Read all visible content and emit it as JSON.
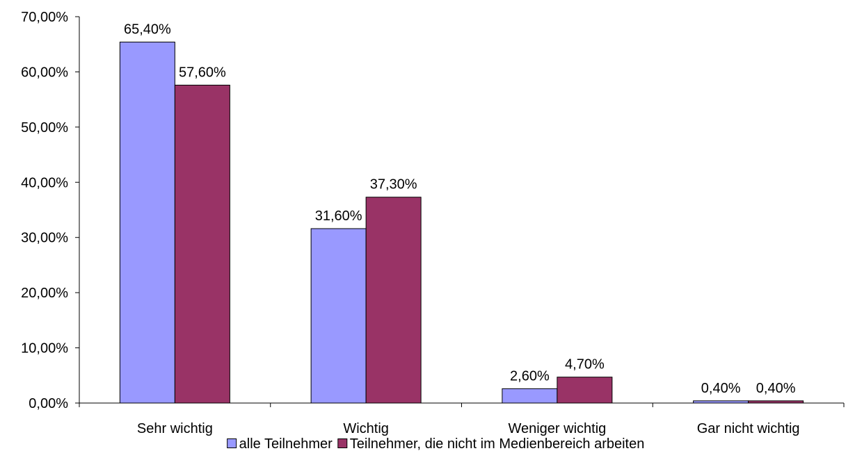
{
  "chart_data": {
    "type": "bar",
    "categories": [
      "Sehr wichtig",
      "Wichtig",
      "Weniger wichtig",
      "Gar nicht wichtig"
    ],
    "series": [
      {
        "name": "alle Teilnehmer",
        "values": [
          65.4,
          31.6,
          2.6,
          0.4
        ],
        "labels": [
          "65,40%",
          "31,60%",
          "2,60%",
          "0,40%"
        ],
        "color": "#9999ff"
      },
      {
        "name": "Teilnehmer, die nicht im Medienbereich arbeiten",
        "values": [
          57.6,
          37.3,
          4.7,
          0.4
        ],
        "labels": [
          "57,60%",
          "37,30%",
          "4,70%",
          "0,40%"
        ],
        "color": "#993366"
      }
    ],
    "yticks": [
      0,
      10,
      20,
      30,
      40,
      50,
      60,
      70
    ],
    "ytick_labels": [
      "0,00%",
      "10,00%",
      "20,00%",
      "30,00%",
      "40,00%",
      "50,00%",
      "60,00%",
      "70,00%"
    ],
    "ylim": [
      0,
      70
    ],
    "grid": false,
    "legend_position": "bottom"
  }
}
